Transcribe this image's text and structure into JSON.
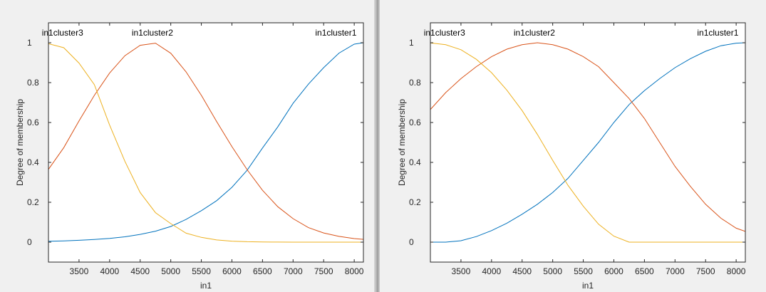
{
  "chart_data": [
    {
      "type": "line",
      "xlabel": "in1",
      "ylabel": "Degree of membership",
      "xlim": [
        3000,
        8150
      ],
      "ylim": [
        -0.1,
        1.1
      ],
      "xticks": [
        3500,
        4000,
        4500,
        5000,
        5500,
        6000,
        6500,
        7000,
        7500,
        8000
      ],
      "yticks": [
        0,
        0.2,
        0.4,
        0.6,
        0.8,
        1
      ],
      "grid": false,
      "series": [
        {
          "name": "in1cluster1",
          "color": "#0072BD",
          "label_x": 7700,
          "x": [
            3000,
            3250,
            3500,
            3750,
            4000,
            4250,
            4500,
            4750,
            5000,
            5250,
            5500,
            5750,
            6000,
            6250,
            6500,
            6750,
            7000,
            7250,
            7500,
            7750,
            8000,
            8150
          ],
          "y": [
            0.0045,
            0.0063,
            0.0093,
            0.0135,
            0.0191,
            0.0268,
            0.0391,
            0.0549,
            0.0787,
            0.114,
            0.158,
            0.208,
            0.275,
            0.361,
            0.472,
            0.578,
            0.696,
            0.792,
            0.875,
            0.948,
            0.993,
            1.0
          ]
        },
        {
          "name": "in1cluster2",
          "color": "#D95319",
          "label_x": 4700,
          "x": [
            3000,
            3250,
            3500,
            3750,
            4000,
            4250,
            4500,
            4750,
            5000,
            5250,
            5500,
            5750,
            6000,
            6250,
            6500,
            6750,
            7000,
            7250,
            7500,
            7750,
            8000,
            8150
          ],
          "y": [
            0.365,
            0.474,
            0.608,
            0.736,
            0.848,
            0.935,
            0.987,
            0.998,
            0.947,
            0.854,
            0.736,
            0.605,
            0.479,
            0.363,
            0.26,
            0.178,
            0.118,
            0.073,
            0.046,
            0.029,
            0.018,
            0.014
          ]
        },
        {
          "name": "in1cluster3",
          "color": "#EDB120",
          "label_x": 3230,
          "x": [
            3000,
            3250,
            3500,
            3750,
            4000,
            4250,
            4500,
            4750,
            5000,
            5250,
            5500,
            5750,
            6000,
            6250,
            6500,
            6750,
            7000,
            7250,
            7500,
            7750,
            8000,
            8150
          ],
          "y": [
            0.995,
            0.975,
            0.898,
            0.79,
            0.587,
            0.405,
            0.249,
            0.148,
            0.093,
            0.045,
            0.024,
            0.011,
            0.005,
            0.002,
            0.001,
            0.0005,
            0,
            0,
            0,
            0,
            0,
            0
          ]
        }
      ]
    },
    {
      "type": "line",
      "xlabel": "in1",
      "ylabel": "Degree of membership",
      "xlim": [
        3000,
        8150
      ],
      "ylim": [
        -0.1,
        1.1
      ],
      "xticks": [
        3500,
        4000,
        4500,
        5000,
        5500,
        6000,
        6500,
        7000,
        7500,
        8000
      ],
      "yticks": [
        0,
        0.2,
        0.4,
        0.6,
        0.8,
        1
      ],
      "grid": false,
      "series": [
        {
          "name": "in1cluster1",
          "color": "#0072BD",
          "label_x": 7700,
          "x": [
            3000,
            3250,
            3500,
            3750,
            4000,
            4250,
            4500,
            4750,
            5000,
            5250,
            5500,
            5750,
            6000,
            6250,
            6500,
            6750,
            7000,
            7250,
            7500,
            7750,
            8000,
            8150
          ],
          "y": [
            0,
            0,
            0.007,
            0.028,
            0.058,
            0.095,
            0.14,
            0.19,
            0.249,
            0.32,
            0.41,
            0.5,
            0.6,
            0.69,
            0.76,
            0.82,
            0.875,
            0.92,
            0.957,
            0.985,
            0.998,
            1.0
          ]
        },
        {
          "name": "in1cluster2",
          "color": "#D95319",
          "label_x": 4700,
          "x": [
            3000,
            3250,
            3500,
            3750,
            4000,
            4250,
            4500,
            4750,
            5000,
            5250,
            5500,
            5750,
            6000,
            6250,
            6500,
            6750,
            7000,
            7250,
            7500,
            7750,
            8000,
            8150
          ],
          "y": [
            0.665,
            0.75,
            0.82,
            0.88,
            0.93,
            0.968,
            0.99,
            1.0,
            0.99,
            0.968,
            0.93,
            0.88,
            0.8,
            0.72,
            0.62,
            0.5,
            0.38,
            0.28,
            0.19,
            0.12,
            0.07,
            0.054
          ]
        },
        {
          "name": "in1cluster3",
          "color": "#EDB120",
          "label_x": 3230,
          "x": [
            3000,
            3250,
            3500,
            3750,
            4000,
            4250,
            4500,
            4750,
            5000,
            5250,
            5500,
            5750,
            6000,
            6250,
            6500,
            6750,
            7000,
            7250,
            7500,
            7750,
            8000,
            8150
          ],
          "y": [
            0.999,
            0.99,
            0.965,
            0.917,
            0.85,
            0.762,
            0.66,
            0.54,
            0.41,
            0.285,
            0.18,
            0.09,
            0.03,
            0,
            0,
            0,
            0,
            0,
            0,
            0,
            0,
            0
          ]
        }
      ]
    }
  ]
}
